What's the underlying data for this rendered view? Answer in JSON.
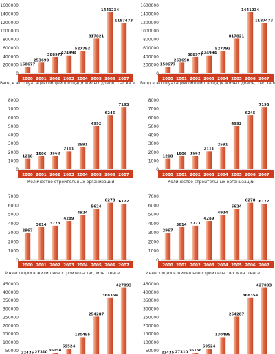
{
  "chart_data": [
    {
      "type": "bar",
      "title": "",
      "caption": "Ввод в эксплуатацию общей площади жилых домов, тыс.кв.м",
      "categories": [
        "2000",
        "2001",
        "2002",
        "2003",
        "2004",
        "2005",
        "2006",
        "2007"
      ],
      "values": [
        150677,
        253690,
        388977,
        424994,
        527793,
        817821,
        1441234,
        1187473
      ],
      "value_labels": [
        "150677",
        "253690",
        "388977",
        "424994",
        "527793",
        "817821",
        "1441234",
        "1187473"
      ],
      "yticks": [
        "0",
        "200000",
        "400000",
        "600000",
        "800000",
        "1000000",
        "1200000",
        "1400000",
        "1600000"
      ],
      "ylim": [
        0,
        1600000
      ],
      "colors": {
        "bar": "#e06a45",
        "bar_light": "#f7c5ad",
        "band": "#cf3b1e"
      }
    },
    {
      "type": "bar",
      "title": "",
      "caption": "Количество строительных организаций",
      "categories": [
        "2000",
        "2001",
        "2002",
        "2003",
        "2004",
        "2005",
        "2006",
        "2007"
      ],
      "values": [
        1218,
        1506,
        1562,
        2111,
        2591,
        4992,
        6245,
        7193
      ],
      "value_labels": [
        "1218",
        "1506",
        "1562",
        "2111",
        "2591",
        "4992",
        "6245",
        "7193"
      ],
      "yticks": [
        "0",
        "1000",
        "2000",
        "3000",
        "4000",
        "5000",
        "6000",
        "7000",
        "8000"
      ],
      "ylim": [
        0,
        8000
      ],
      "colors": {
        "bar": "#e06a45",
        "bar_light": "#f7c5ad",
        "band": "#cf3b1e"
      }
    },
    {
      "type": "bar",
      "title": "",
      "caption": "Инвестиции в жилищное строительство, млн. тенге",
      "categories": [
        "2000",
        "2001",
        "2002",
        "2003",
        "2004",
        "2005",
        "2006",
        "2007"
      ],
      "values": [
        2967,
        3614,
        3773,
        4289,
        4924,
        5624,
        6278,
        6172
      ],
      "value_labels": [
        "2967",
        "3614",
        "3773",
        "4289",
        "4924",
        "5624",
        "6278",
        "6172"
      ],
      "yticks": [
        "0",
        "1000",
        "2000",
        "3000",
        "4000",
        "5000",
        "6000",
        "7000"
      ],
      "ylim": [
        0,
        7000
      ],
      "colors": {
        "bar": "#e06a45",
        "bar_light": "#f7c5ad",
        "band": "#cf3b1e"
      }
    },
    {
      "type": "bar",
      "title": "",
      "caption": "",
      "categories": [
        "2000",
        "2001",
        "2002",
        "2003",
        "2004",
        "2005",
        "2006",
        "2007"
      ],
      "values": [
        22435,
        27310,
        36158,
        59524,
        130495,
        254287,
        368354,
        427093
      ],
      "value_labels": [
        "22435",
        "27310",
        "36158",
        "59524",
        "130495",
        "254287",
        "368354",
        "427093"
      ],
      "yticks": [
        "0",
        "50000",
        "100000",
        "150000",
        "200000",
        "250000",
        "300000",
        "350000",
        "400000",
        "450000"
      ],
      "ylim": [
        0,
        450000
      ],
      "colors": {
        "bar": "#e06a45",
        "bar_light": "#f7c5ad",
        "band": "#cf3b1e"
      }
    }
  ]
}
